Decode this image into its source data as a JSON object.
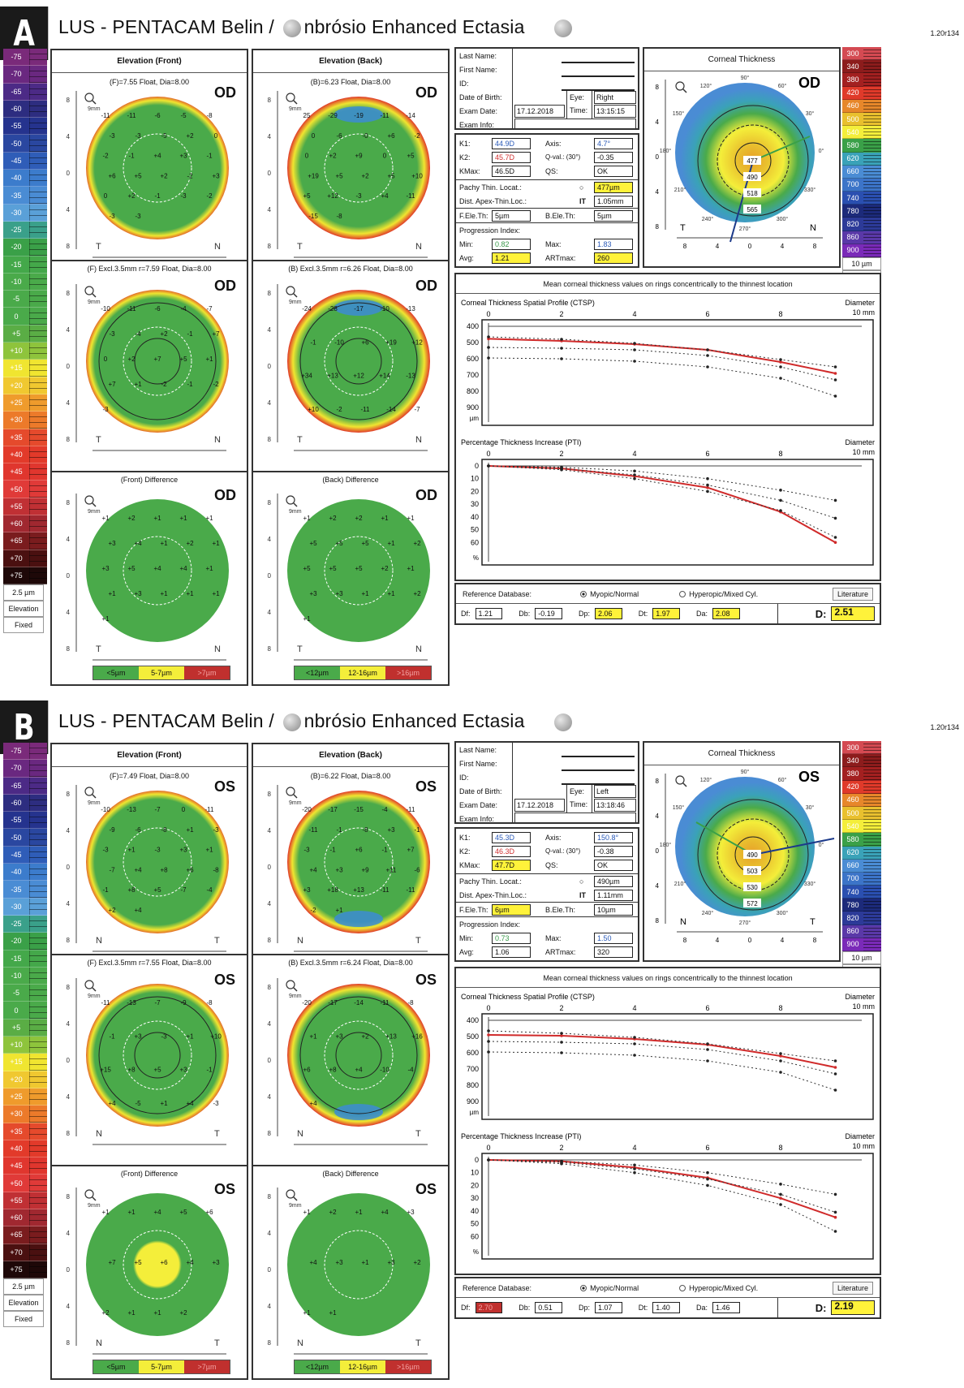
{
  "scale": {
    "labels": [
      "-75",
      "-70",
      "-65",
      "-60",
      "-55",
      "-50",
      "-45",
      "-40",
      "-35",
      "-30",
      "-25",
      "-20",
      "-15",
      "-10",
      "-5",
      "0",
      "+5",
      "+10",
      "+15",
      "+20",
      "+25",
      "+30",
      "+35",
      "+40",
      "+45",
      "+50",
      "+55",
      "+60",
      "+65",
      "+70",
      "+75"
    ],
    "colors": [
      "#7a2a7a",
      "#6a2880",
      "#4c2a86",
      "#2d2d80",
      "#25338e",
      "#2a47a0",
      "#2f5db8",
      "#3c7ccc",
      "#4a8cd4",
      "#5aa0d8",
      "#3aa08a",
      "#3aa048",
      "#44a84a",
      "#4aaa4a",
      "#4aaa4a",
      "#4aaa4a",
      "#5aad45",
      "#8ec43c",
      "#f0e530",
      "#f0c830",
      "#ef9b2c",
      "#ec7a2a",
      "#e54a2c",
      "#e23a2a",
      "#e0362e",
      "#e03a38",
      "#c03034",
      "#a02830",
      "#7a1c1e",
      "#4a1010",
      "#1e0808"
    ],
    "step": "2.5 µm",
    "mode": "Elevation",
    "type": "Fixed"
  },
  "ct_scale": {
    "labels": [
      "300",
      "340",
      "380",
      "420",
      "460",
      "500",
      "540",
      "580",
      "620",
      "660",
      "700",
      "740",
      "780",
      "820",
      "860",
      "900"
    ],
    "colors": [
      "#d44a52",
      "#8c1c1c",
      "#a32020",
      "#e03a2a",
      "#e7872a",
      "#e9c02e",
      "#f4ee3a",
      "#3aa048",
      "#3aa2b8",
      "#4a8cd4",
      "#3c74c8",
      "#2a4fb0",
      "#1c2a7a",
      "#2c3a98",
      "#5a38a8",
      "#7a2ab8"
    ],
    "step": "10 µm",
    "mode": "Pachy.",
    "type": "Abs"
  },
  "reports": [
    {
      "badge": "A",
      "title_pre": "LUS  -  PENTACAM   Belin / ",
      "title_post": "nbrósio Enhanced Ectasia",
      "version": "1.20r134",
      "eye": "OD",
      "front_title": "Elevation (Front)",
      "back_title": "Elevation (Back)",
      "front_sub": "(F)=7.55 Float, Dia=8.00",
      "back_sub": "(B)=6.23 Float, Dia=8.00",
      "front_excl_sub": "(F) Excl.3.5mm  r=7.59 Float, Dia=8.00",
      "back_excl_sub": "(B) Excl.3.5mm  r=6.26 Float, Dia=8.00",
      "front_diff_title": "(Front) Difference",
      "back_diff_title": "(Back) Difference",
      "left_side": "T",
      "right_side": "N",
      "front_legend": [
        "<5µm",
        "5-7µm",
        ">7µm"
      ],
      "back_legend": [
        "<12µm",
        "12-16µm",
        ">16µm"
      ],
      "patient": {
        "last_name_label": "Last Name:",
        "first_name_label": "First Name:",
        "id_label": "ID:",
        "dob_label": "Date of Birth:",
        "exam_date_label": "Exam Date:",
        "exam_info_label": "Exam Info:",
        "eye_label": "Eye:",
        "eye_value": "Right",
        "time_label": "Time:",
        "time_value": "13:15:15",
        "exam_date": "17.12.2018"
      },
      "k": {
        "k1_label": "K1:",
        "k1": "44.9D",
        "k2_label": "K2:",
        "k2": "45.7D",
        "kmax_label": "KMax:",
        "kmax": "46.5D",
        "axis_label": "Axis:",
        "axis": "4.7°",
        "qval_label": "Q-val.: (30°)",
        "qval": "-0.35",
        "qs_label": "QS:",
        "qs": "OK"
      },
      "pachy": {
        "thin_label": "Pachy Thin. Locat.:",
        "thin": "477µm",
        "dist_label": "Dist. Apex-Thin.Loc.:",
        "dist": "1.05mm"
      },
      "ele": {
        "f_label": "F.Ele.Th:",
        "f": "5µm",
        "b_label": "B.Ele.Th:",
        "b": "5µm"
      },
      "progression": {
        "title": "Progression Index:",
        "min_label": "Min:",
        "min": "0.82",
        "max_label": "Max:",
        "max": "1.83",
        "avg_label": "Avg:",
        "avg": "1.21",
        "art_label": "ARTmax:",
        "art": "260"
      },
      "ct": {
        "title": "Corneal Thickness",
        "values": [
          "477",
          "490",
          "518",
          "565"
        ],
        "thinnest": 477
      },
      "refdb": {
        "label": "Reference Database:",
        "opt1": "Myopic/Normal",
        "opt2": "Hyperopic/Mixed Cyl.",
        "lit": "Literature",
        "df": "1.21",
        "db": "-0.19",
        "dp": "2.06",
        "dt": "1.97",
        "da": "2.08",
        "d": "2.51"
      }
    },
    {
      "badge": "B",
      "title_pre": "LUS  -  PENTACAM   Belin / ",
      "title_post": "nbrósio Enhanced Ectasia",
      "version": "1.20r134",
      "eye": "OS",
      "front_title": "Elevation (Front)",
      "back_title": "Elevation (Back)",
      "front_sub": "(F)=7.49 Float, Dia=8.00",
      "back_sub": "(B)=6.22 Float, Dia=8.00",
      "front_excl_sub": "(F) Excl.3.5mm  r=7.55 Float, Dia=8.00",
      "back_excl_sub": "(B) Excl.3.5mm  r=6.24 Float, Dia=8.00",
      "front_diff_title": "(Front) Difference",
      "back_diff_title": "(Back) Difference",
      "left_side": "N",
      "right_side": "T",
      "front_legend": [
        "<5µm",
        "5-7µm",
        ">7µm"
      ],
      "back_legend": [
        "<12µm",
        "12-16µm",
        ">16µm"
      ],
      "patient": {
        "last_name_label": "Last Name:",
        "first_name_label": "First Name:",
        "id_label": "ID:",
        "dob_label": "Date of Birth:",
        "exam_date_label": "Exam Date:",
        "exam_info_label": "Exam Info:",
        "eye_label": "Eye:",
        "eye_value": "Left",
        "time_label": "Time:",
        "time_value": "13:18:46",
        "exam_date": "17.12.2018"
      },
      "k": {
        "k1_label": "K1:",
        "k1": "45.3D",
        "k2_label": "K2:",
        "k2": "46.3D",
        "kmax_label": "KMax:",
        "kmax": "47.7D",
        "axis_label": "Axis:",
        "axis": "150.8°",
        "qval_label": "Q-val.: (30°)",
        "qval": "-0.38",
        "qs_label": "QS:",
        "qs": "OK"
      },
      "pachy": {
        "thin_label": "Pachy Thin. Locat.:",
        "thin": "490µm",
        "dist_label": "Dist. Apex-Thin.Loc.:",
        "dist": "1.11mm"
      },
      "ele": {
        "f_label": "F.Ele.Th:",
        "f": "6µm",
        "b_label": "B.Ele.Th:",
        "b": "10µm"
      },
      "progression": {
        "title": "Progression Index:",
        "min_label": "Min:",
        "min": "0.73",
        "max_label": "Max:",
        "max": "1.50",
        "avg_label": "Avg:",
        "avg": "1.06",
        "art_label": "ARTmax:",
        "art": "320"
      },
      "ct": {
        "title": "Corneal Thickness",
        "values": [
          "490",
          "503",
          "530",
          "572"
        ],
        "thinnest": 490
      },
      "refdb": {
        "label": "Reference Database:",
        "opt1": "Myopic/Normal",
        "opt2": "Hyperopic/Mixed Cyl.",
        "lit": "Literature",
        "df": "2.70",
        "db": "0.51",
        "dp": "1.07",
        "dt": "1.40",
        "da": "1.46",
        "d": "2.19"
      }
    }
  ],
  "charts_common": {
    "header": "Mean corneal thickness values on rings concentrically to the thinnest location",
    "ctsp_title": "Corneal Thickness Spatial Profile (CTSP)",
    "pti_title": "Percentage Thickness Increase (PTI)",
    "diameter_label": "Diameter",
    "x_unit": "10 mm",
    "x_ticks": [
      "0",
      "2",
      "4",
      "6",
      "8"
    ],
    "ctsp_y_ticks": [
      "400",
      "500",
      "600",
      "700",
      "800",
      "900"
    ],
    "ctsp_y_unit": "µm",
    "pti_y_ticks": [
      "0",
      "10",
      "20",
      "30",
      "40",
      "50",
      "60"
    ],
    "pti_y_unit": "%"
  },
  "chart_data": [
    {
      "type": "line",
      "title": "Corneal Thickness Spatial Profile (CTSP) — OD",
      "xlabel": "Diameter (mm)",
      "ylabel": "µm",
      "x": [
        0,
        2,
        4,
        6,
        8,
        9.5
      ],
      "ylim": [
        400,
        950
      ],
      "xlim": [
        0,
        10
      ],
      "series": [
        {
          "name": "Patient",
          "values": [
            477,
            490,
            510,
            545,
            620,
            690
          ]
        },
        {
          "name": "Norm upper",
          "values": [
            465,
            480,
            505,
            545,
            605,
            650
          ]
        },
        {
          "name": "Norm mean",
          "values": [
            530,
            535,
            545,
            580,
            650,
            730
          ]
        },
        {
          "name": "Norm lower",
          "values": [
            595,
            600,
            615,
            650,
            720,
            830
          ]
        }
      ]
    },
    {
      "type": "line",
      "title": "Percentage Thickness Increase (PTI) — OD",
      "xlabel": "Diameter (mm)",
      "ylabel": "%",
      "x": [
        0,
        2,
        4,
        6,
        8,
        9.5
      ],
      "ylim": [
        0,
        70
      ],
      "xlim": [
        0,
        10
      ],
      "series": [
        {
          "name": "Patient",
          "values": [
            0,
            2,
            8,
            17,
            36,
            60
          ]
        },
        {
          "name": "Norm upper",
          "values": [
            0,
            1,
            4,
            10,
            19,
            27
          ]
        },
        {
          "name": "Norm mean",
          "values": [
            0,
            2,
            7,
            15,
            27,
            41
          ]
        },
        {
          "name": "Norm lower",
          "values": [
            0,
            3,
            10,
            20,
            35,
            56
          ]
        }
      ]
    },
    {
      "type": "line",
      "title": "Corneal Thickness Spatial Profile (CTSP) — OS",
      "xlabel": "Diameter (mm)",
      "ylabel": "µm",
      "x": [
        0,
        2,
        4,
        6,
        8,
        9.5
      ],
      "ylim": [
        400,
        950
      ],
      "xlim": [
        0,
        10
      ],
      "series": [
        {
          "name": "Patient",
          "values": [
            490,
            495,
            515,
            550,
            620,
            690
          ]
        },
        {
          "name": "Norm upper",
          "values": [
            465,
            480,
            505,
            545,
            605,
            650
          ]
        },
        {
          "name": "Norm mean",
          "values": [
            530,
            535,
            545,
            580,
            650,
            730
          ]
        },
        {
          "name": "Norm lower",
          "values": [
            595,
            600,
            615,
            650,
            720,
            830
          ]
        }
      ]
    },
    {
      "type": "line",
      "title": "Percentage Thickness Increase (PTI) — OS",
      "xlabel": "Diameter (mm)",
      "ylabel": "%",
      "x": [
        0,
        2,
        4,
        6,
        8,
        9.5
      ],
      "ylim": [
        0,
        70
      ],
      "xlim": [
        0,
        10
      ],
      "series": [
        {
          "name": "Patient",
          "values": [
            0,
            1,
            6,
            14,
            30,
            45
          ]
        },
        {
          "name": "Norm upper",
          "values": [
            0,
            1,
            4,
            10,
            19,
            27
          ]
        },
        {
          "name": "Norm mean",
          "values": [
            0,
            2,
            7,
            15,
            27,
            41
          ]
        },
        {
          "name": "Norm lower",
          "values": [
            0,
            3,
            10,
            20,
            35,
            56
          ]
        }
      ]
    }
  ],
  "maps": {
    "A": {
      "front": [
        "-11",
        "-11",
        "-6",
        "-5",
        "-8",
        "-3",
        "-3",
        "-5",
        "+2",
        "0",
        "-2",
        "-1",
        "+4",
        "+3",
        "-1",
        "+6",
        "+5",
        "+2",
        "-2",
        "+3",
        "0",
        "+2",
        "-1",
        "-3",
        "-2",
        "-3",
        "-3"
      ],
      "back": [
        "25",
        "-29",
        "-19",
        "-11",
        "-14",
        "0",
        "-6",
        "-0",
        "+6",
        "-2",
        "0",
        "+2",
        "+9",
        "0",
        "+5",
        "+19",
        "+5",
        "+2",
        "+5",
        "+10",
        "+5",
        "+12",
        "-3",
        "+4",
        "-11",
        "-15",
        "-8"
      ],
      "front_excl": [
        "-10",
        "-11",
        "-6",
        "-4",
        "-7",
        "-3",
        "-4",
        "+2",
        "-1",
        "+7",
        "0",
        "+2",
        "+7",
        "+5",
        "+1",
        "+7",
        "+1",
        "-2",
        "-1",
        "-2",
        "-3"
      ],
      "back_excl": [
        "-24",
        "-28",
        "-17",
        "-10",
        "-13",
        "-1",
        "-10",
        "+6",
        "+19",
        "+12",
        "+34",
        "+13",
        "+12",
        "+14",
        "-13",
        "+10",
        "-2",
        "-11",
        "-14",
        "-7"
      ],
      "front_diff": [
        "+1",
        "+2",
        "+1",
        "+1",
        "+1",
        "+3",
        "+4",
        "+1",
        "+2",
        "+1",
        "+3",
        "+5",
        "+4",
        "+4",
        "+1",
        "+1",
        "+3",
        "+1",
        "+1",
        "+1",
        "+1"
      ],
      "back_diff": [
        "+1",
        "+2",
        "+2",
        "+1",
        "+1",
        "+5",
        "+5",
        "+5",
        "+1",
        "+2",
        "+5",
        "+5",
        "+5",
        "+2",
        "+1",
        "+3",
        "+3",
        "+1",
        "+1",
        "+2",
        "+1"
      ]
    },
    "B": {
      "front": [
        "-10",
        "-13",
        "-7",
        "0",
        "-11",
        "-9",
        "-6",
        "-8",
        "+1",
        "-3",
        "-3",
        "+1",
        "-3",
        "+3",
        "+1",
        "-7",
        "+4",
        "+8",
        "+6",
        "-8",
        "-1",
        "+8",
        "+5",
        "-7",
        "-4",
        "+2",
        "+4"
      ],
      "back": [
        "-20",
        "-17",
        "-15",
        "-4",
        "-11",
        "-11",
        "-1",
        "-8",
        "+3",
        "-1",
        "-3",
        "-1",
        "+6",
        "-1",
        "+7",
        "+4",
        "+3",
        "+9",
        "+11",
        "-6",
        "+3",
        "+18",
        "+13",
        "-11",
        "-11",
        "-2",
        "+1"
      ],
      "front_excl": [
        "-11",
        "-13",
        "-7",
        "-9",
        "-8",
        "-1",
        "+3",
        "-3",
        "+1",
        "+10",
        "+15",
        "+8",
        "+5",
        "+3",
        "-1",
        "+4",
        "-5",
        "+1",
        "+4",
        "-3"
      ],
      "back_excl": [
        "-20",
        "-17",
        "-14",
        "-11",
        "-8",
        "+1",
        "+3",
        "+2",
        "+13",
        "+16",
        "+6",
        "+8",
        "+4",
        "-10",
        "-4",
        "+4"
      ],
      "front_diff": [
        "+1",
        "+1",
        "+4",
        "+5",
        "+6",
        "+7",
        "+5",
        "+6",
        "+4",
        "+3",
        "+2",
        "+1",
        "+1",
        "+2"
      ],
      "back_diff": [
        "+1",
        "+2",
        "+1",
        "+4",
        "+3",
        "+4",
        "+3",
        "+1",
        "+3",
        "+2",
        "+1",
        "+1"
      ]
    }
  }
}
